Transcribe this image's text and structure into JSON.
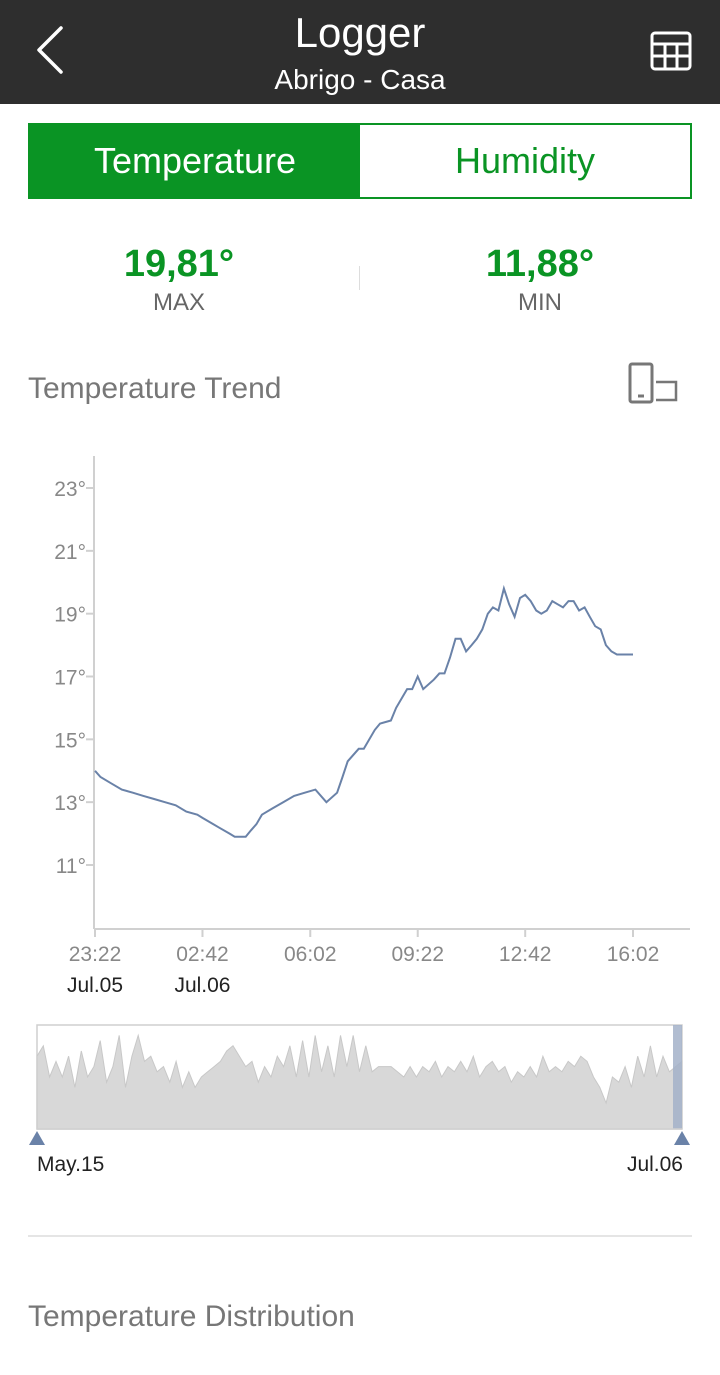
{
  "header": {
    "title": "Logger",
    "subtitle": "Abrigo - Casa",
    "back_icon": "chevron-left-icon",
    "table_icon": "table-grid-icon"
  },
  "tabs": [
    {
      "label": "Temperature",
      "active": true
    },
    {
      "label": "Humidity",
      "active": false
    }
  ],
  "stats": {
    "max_value": "19,81°",
    "max_label": "MAX",
    "min_value": "11,88°",
    "min_label": "MIN"
  },
  "trend": {
    "title": "Temperature Trend",
    "rotate_icon": "rotate-screen-icon"
  },
  "colors": {
    "accent": "#0a9424",
    "header_bg": "#2e2e2e",
    "line": "#6a82a8",
    "overview_fill": "#d8d8d8",
    "handle": "#6a82a8"
  },
  "chart_data": {
    "type": "line",
    "y_ticks": [
      "23°",
      "21°",
      "19°",
      "17°",
      "15°",
      "13°",
      "11°"
    ],
    "ylim": [
      9.5,
      24
    ],
    "x_ticks": [
      {
        "time": "23:22",
        "date": "Jul.05"
      },
      {
        "time": "02:42",
        "date": "Jul.06"
      },
      {
        "time": "06:02",
        "date": ""
      },
      {
        "time": "09:22",
        "date": ""
      },
      {
        "time": "12:42",
        "date": ""
      },
      {
        "time": "16:02",
        "date": ""
      }
    ],
    "x_hours": [
      0,
      3.33,
      6.67,
      10,
      13.33,
      16.67
    ],
    "series": [
      {
        "x": [
          0,
          0.17,
          0.5,
          0.83,
          1.17,
          1.5,
          1.83,
          2.17,
          2.5,
          2.83,
          3.17,
          3.33,
          3.67,
          3.83,
          4.17,
          4.33,
          4.67,
          4.83,
          5.0,
          5.17,
          5.5,
          5.83,
          6.17,
          6.5,
          6.83,
          7.17,
          7.5,
          7.67,
          7.83,
          8.17,
          8.33,
          8.67,
          8.83,
          9.17,
          9.33,
          9.5,
          9.67,
          9.83,
          10.0,
          10.17,
          10.5,
          10.67,
          10.83,
          11.0,
          11.17,
          11.33,
          11.5,
          11.67,
          11.83,
          12.0,
          12.17,
          12.33,
          12.5,
          12.67,
          12.83,
          13.0,
          13.17,
          13.33,
          13.5,
          13.67,
          13.83,
          14.0,
          14.17,
          14.33,
          14.5,
          14.67,
          14.83,
          15.0,
          15.17,
          15.33,
          15.5,
          15.67,
          15.83,
          16.0,
          16.17,
          16.33,
          16.5,
          16.67
        ],
        "values": [
          14.0,
          13.8,
          13.6,
          13.4,
          13.3,
          13.2,
          13.1,
          13.0,
          12.9,
          12.7,
          12.6,
          12.5,
          12.3,
          12.2,
          12.0,
          11.9,
          11.9,
          12.1,
          12.3,
          12.6,
          12.8,
          13.0,
          13.2,
          13.3,
          13.4,
          13.0,
          13.3,
          13.8,
          14.3,
          14.7,
          14.7,
          15.3,
          15.5,
          15.6,
          16.0,
          16.3,
          16.6,
          16.6,
          17.0,
          16.6,
          16.9,
          17.1,
          17.1,
          17.6,
          18.2,
          18.2,
          17.8,
          18.0,
          18.2,
          18.5,
          19.0,
          19.2,
          19.1,
          19.8,
          19.3,
          18.9,
          19.5,
          19.6,
          19.4,
          19.1,
          19.0,
          19.1,
          19.4,
          19.3,
          19.2,
          19.4,
          19.4,
          19.1,
          19.2,
          18.9,
          18.6,
          18.5,
          18.0,
          17.8,
          17.7,
          17.7,
          17.7,
          17.7
        ]
      }
    ],
    "overview": {
      "start_label": "May.15",
      "end_label": "Jul.06",
      "values": [
        13,
        14,
        11,
        12.5,
        11,
        13,
        10,
        13.5,
        11,
        12,
        14.5,
        10.5,
        12,
        15,
        10,
        13,
        15,
        12.5,
        13,
        11.5,
        12,
        10.5,
        12.5,
        10,
        11.5,
        10,
        11,
        11.5,
        12,
        12.5,
        13.5,
        14,
        13,
        12,
        12.5,
        10.5,
        12,
        11,
        13,
        12,
        14,
        11,
        14.5,
        11,
        15,
        11.5,
        14,
        11,
        15,
        12,
        15,
        11.5,
        14,
        11.5,
        12,
        12,
        12,
        11.5,
        11,
        12,
        11,
        12,
        11.5,
        12.5,
        11,
        12,
        11.5,
        12.5,
        11.5,
        13,
        11,
        12,
        12.5,
        11.5,
        12,
        10.5,
        11.5,
        11,
        12,
        11,
        13,
        11.5,
        12,
        11.5,
        12.5,
        12,
        13,
        12.5,
        11,
        10,
        8.5,
        11,
        10.5,
        12,
        10,
        13,
        11,
        14,
        11,
        13,
        11.5,
        12,
        12.5
      ]
    }
  }
}
